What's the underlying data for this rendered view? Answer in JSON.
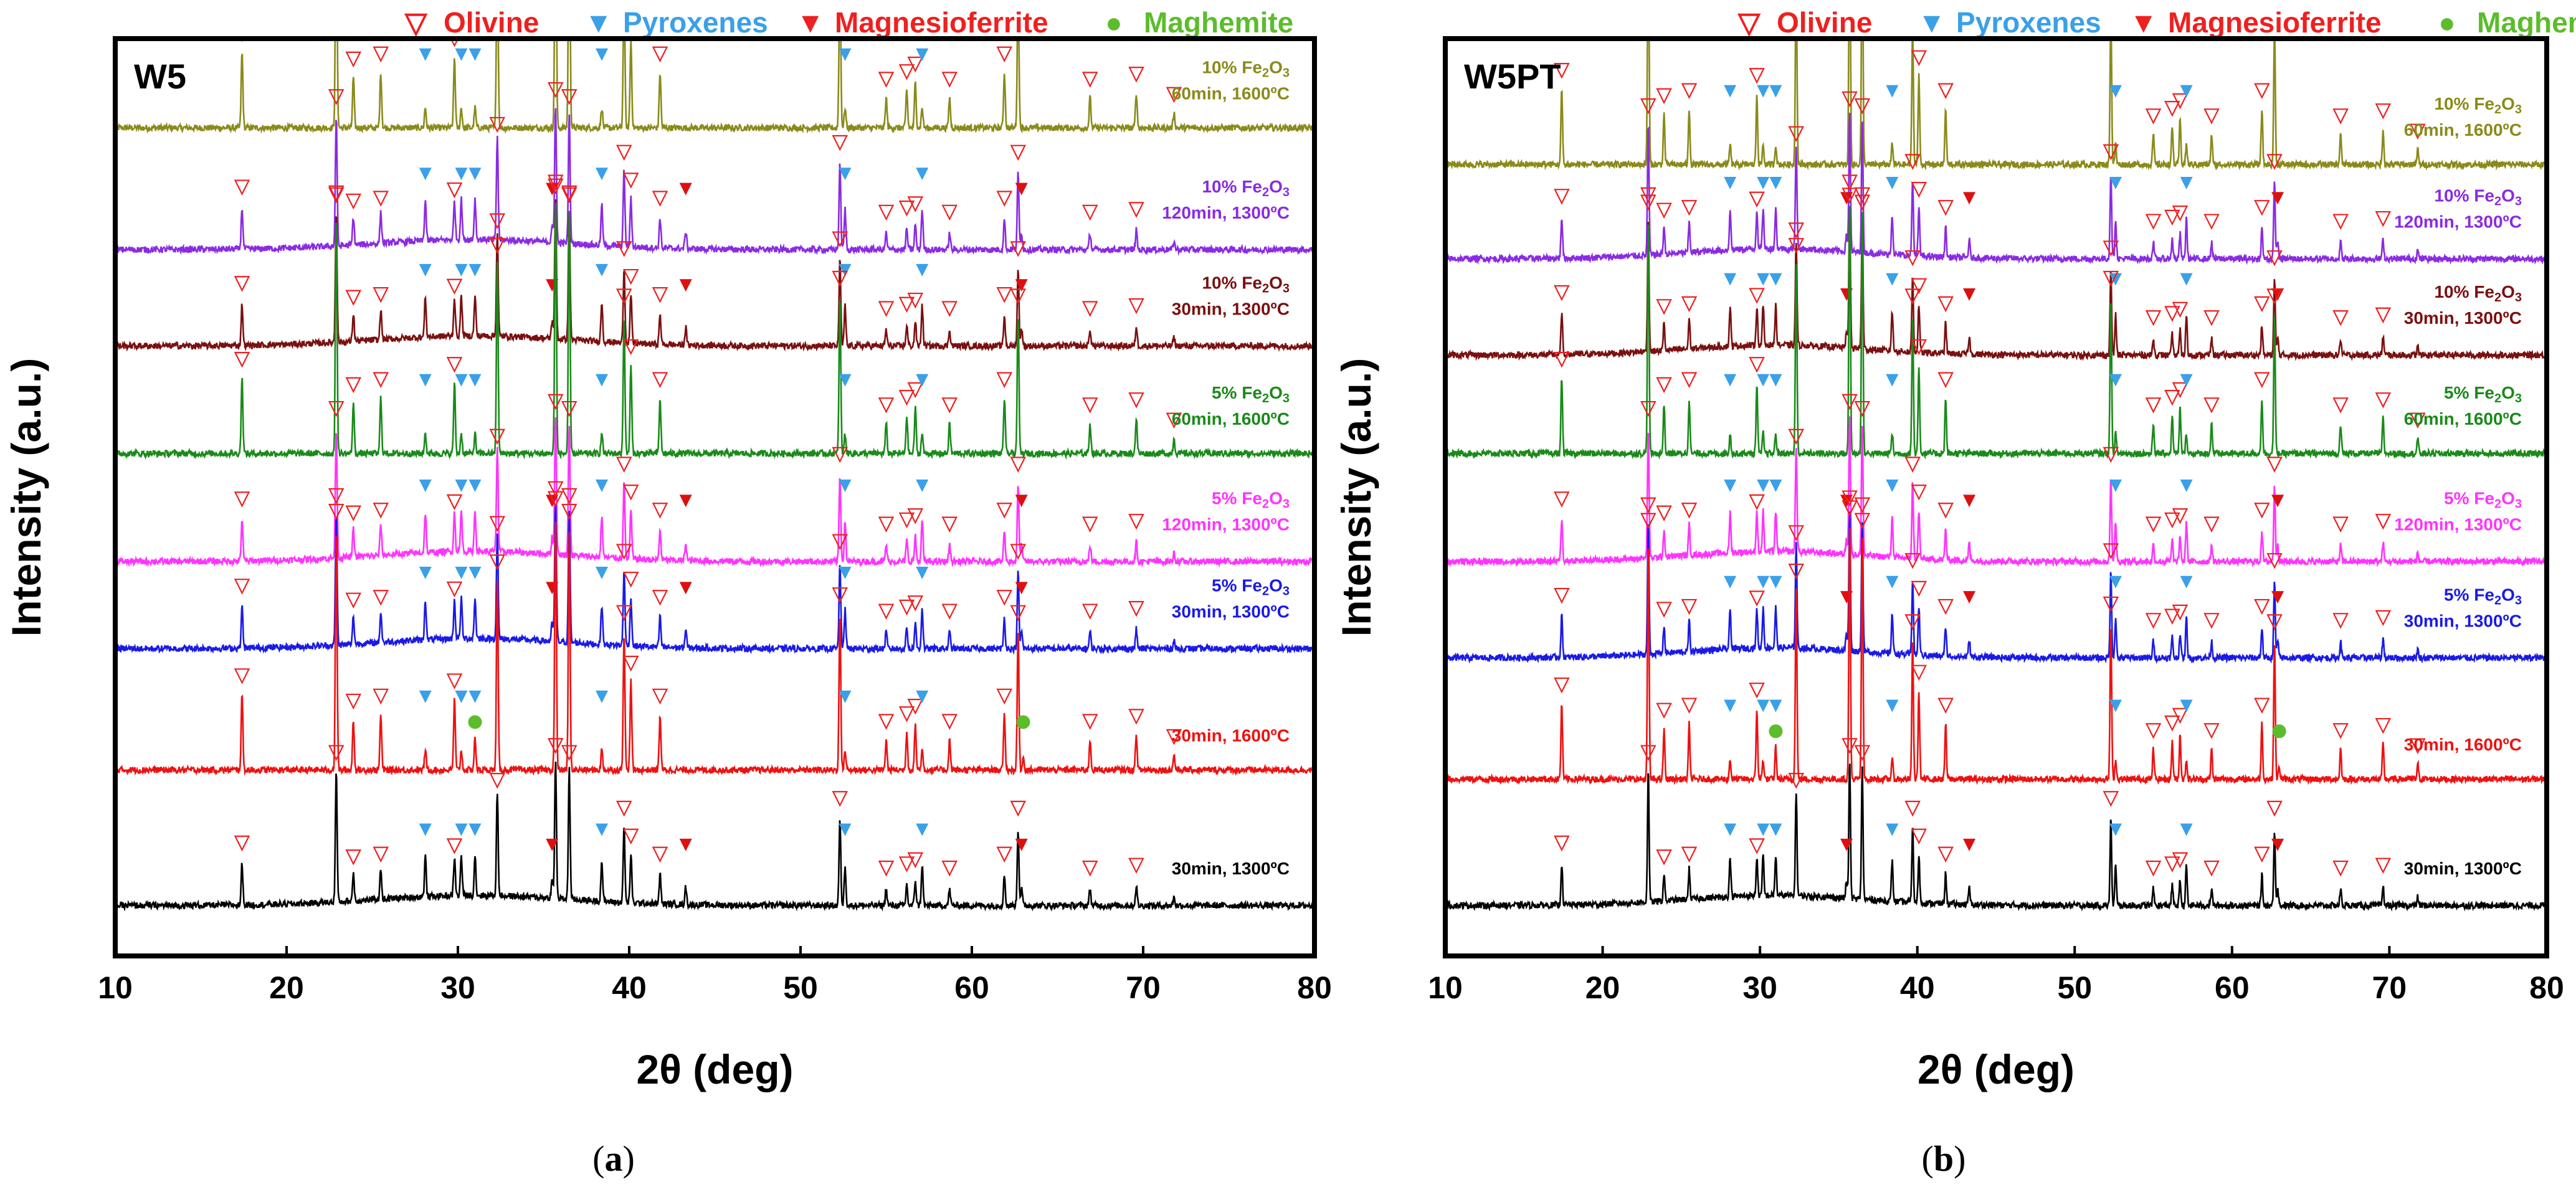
{
  "chart_data": [
    {
      "panel": "a",
      "type": "line",
      "title": "W5",
      "caption_letter": "a",
      "xlabel": "2θ  (deg)",
      "ylabel": "Intensity (a.u.)",
      "xlim": [
        10,
        80
      ],
      "xticks": [
        10,
        20,
        30,
        40,
        50,
        60,
        70,
        80
      ],
      "legend": [
        {
          "symbol": "▽",
          "label": "Olivine",
          "color": "#ee2020",
          "symbol_color": "#ee2020"
        },
        {
          "symbol": "▼",
          "label": "Pyroxenes",
          "color": "#3aa0e8",
          "symbol_color": "#3aa0e8"
        },
        {
          "symbol": "▼",
          "label": "Magnesioferrite",
          "color": "#ee2020",
          "symbol_color": "#ee2020"
        },
        {
          "symbol": "●",
          "label": "Maghemite",
          "color": "#5bbd2b",
          "symbol_color": "#5bbd2b"
        }
      ],
      "series": [
        {
          "name": "10% Fe2O3 60min, 1600ºC",
          "line1": "10% Fe",
          "line1_sub": "2",
          "line1_mid": "O",
          "line1_sub2": "3",
          "line2": "60min, 1600ºC",
          "color": "#8a8a1a",
          "baseline": 0.9,
          "kind": "1600",
          "pyro": 1,
          "maghemite": 0
        },
        {
          "name": "10% Fe2O3 120min, 1300ºC",
          "line1": "10% Fe",
          "line1_sub": "2",
          "line1_mid": "O",
          "line1_sub2": "3",
          "line2": "120min, 1300ºC",
          "color": "#8a2be2",
          "baseline": 0.77,
          "kind": "1300",
          "pyro": 1,
          "maghemite": 0
        },
        {
          "name": "10% Fe2O3 30min, 1300ºC",
          "line1": "10% Fe",
          "line1_sub": "2",
          "line1_mid": "O",
          "line1_sub2": "3",
          "line2": "30min, 1300ºC",
          "color": "#7a1010",
          "baseline": 0.665,
          "kind": "1300",
          "pyro": 1,
          "maghemite": 0
        },
        {
          "name": "5% Fe2O3 60min, 1600ºC",
          "line1": "5% Fe",
          "line1_sub": "2",
          "line1_mid": "O",
          "line1_sub2": "3",
          "line2": "60min, 1600ºC",
          "color": "#1a8a1a",
          "baseline": 0.545,
          "kind": "1600",
          "pyro": 1,
          "maghemite": 0
        },
        {
          "name": "5% Fe2O3 120min, 1300ºC",
          "line1": "5% Fe",
          "line1_sub": "2",
          "line1_mid": "O",
          "line1_sub2": "3",
          "line2": "120min, 1300ºC",
          "color": "#ff33ff",
          "baseline": 0.43,
          "kind": "1300",
          "pyro": 1,
          "maghemite": 0
        },
        {
          "name": "5% Fe2O3 30min, 1300ºC",
          "line1": "5% Fe",
          "line1_sub": "2",
          "line1_mid": "O",
          "line1_sub2": "3",
          "line2": "30min, 1300ºC",
          "color": "#1a1ae6",
          "baseline": 0.335,
          "kind": "1300",
          "pyro": 1,
          "maghemite": 0
        },
        {
          "name": "30min, 1600ºC",
          "line1": "",
          "line1_sub": "",
          "line1_mid": "",
          "line1_sub2": "",
          "line2": "30min, 1600ºC",
          "color": "#ee1111",
          "baseline": 0.2,
          "kind": "1600",
          "pyro": 1,
          "maghemite": 1
        },
        {
          "name": "30min, 1300ºC",
          "line1": "",
          "line1_sub": "",
          "line1_mid": "",
          "line1_sub2": "",
          "line2": "30min, 1300ºC",
          "color": "#000000",
          "baseline": 0.055,
          "kind": "1300",
          "pyro": 1,
          "maghemite": 0
        }
      ]
    },
    {
      "panel": "b",
      "type": "line",
      "title": "W5PT",
      "caption_letter": "b",
      "xlabel": "2θ  (deg)",
      "ylabel": "Intensity (a.u.)",
      "xlim": [
        10,
        80
      ],
      "xticks": [
        10,
        20,
        30,
        40,
        50,
        60,
        70,
        80
      ],
      "legend": [
        {
          "symbol": "▽",
          "label": "Olivine",
          "color": "#ee2020",
          "symbol_color": "#ee2020"
        },
        {
          "symbol": "▼",
          "label": "Pyroxenes",
          "color": "#3aa0e8",
          "symbol_color": "#3aa0e8"
        },
        {
          "symbol": "▼",
          "label": "Magnesioferrite",
          "color": "#ee2020",
          "symbol_color": "#ee2020"
        },
        {
          "symbol": "●",
          "label": "Maghemite",
          "color": "#5bbd2b",
          "symbol_color": "#5bbd2b"
        }
      ],
      "series": [
        {
          "name": "10% Fe2O3 60min, 1600ºC",
          "line1": "10% Fe",
          "line1_sub": "2",
          "line1_mid": "O",
          "line1_sub2": "3",
          "line2": "60min, 1600ºC",
          "color": "#8a8a1a",
          "baseline": 0.86,
          "kind": "1600",
          "pyro": 1,
          "maghemite": 0
        },
        {
          "name": "10% Fe2O3 120min, 1300ºC",
          "line1": "10% Fe",
          "line1_sub": "2",
          "line1_mid": "O",
          "line1_sub2": "3",
          "line2": "120min, 1300ºC",
          "color": "#8a2be2",
          "baseline": 0.76,
          "kind": "1300",
          "pyro": 1,
          "maghemite": 0
        },
        {
          "name": "10% Fe2O3 30min, 1300ºC",
          "line1": "10% Fe",
          "line1_sub": "2",
          "line1_mid": "O",
          "line1_sub2": "3",
          "line2": "30min, 1300ºC",
          "color": "#7a1010",
          "baseline": 0.655,
          "kind": "1300",
          "pyro": 1,
          "maghemite": 0
        },
        {
          "name": "5% Fe2O3 60min, 1600ºC",
          "line1": "5% Fe",
          "line1_sub": "2",
          "line1_mid": "O",
          "line1_sub2": "3",
          "line2": "60min, 1600ºC",
          "color": "#1a8a1a",
          "baseline": 0.545,
          "kind": "1600",
          "pyro": 1,
          "maghemite": 0
        },
        {
          "name": "5% Fe2O3 120min, 1300ºC",
          "line1": "5% Fe",
          "line1_sub": "2",
          "line1_mid": "O",
          "line1_sub2": "3",
          "line2": "120min, 1300ºC",
          "color": "#ff33ff",
          "baseline": 0.43,
          "kind": "1300",
          "pyro": 1,
          "maghemite": 0
        },
        {
          "name": "5% Fe2O3 30min, 1300ºC",
          "line1": "5% Fe",
          "line1_sub": "2",
          "line1_mid": "O",
          "line1_sub2": "3",
          "line2": "30min, 1300ºC",
          "color": "#1a1ae6",
          "baseline": 0.325,
          "kind": "1300",
          "pyro": 1,
          "maghemite": 0
        },
        {
          "name": "30min, 1600ºC",
          "line1": "",
          "line1_sub": "",
          "line1_mid": "",
          "line1_sub2": "",
          "line2": "30min, 1600ºC",
          "color": "#ee1111",
          "baseline": 0.19,
          "kind": "1600",
          "pyro": 1,
          "maghemite": 1
        },
        {
          "name": "30min, 1300ºC",
          "line1": "",
          "line1_sub": "",
          "line1_mid": "",
          "line1_sub2": "",
          "line2": "30min, 1300ºC",
          "color": "#000000",
          "baseline": 0.055,
          "kind": "1300",
          "pyro": 1,
          "maghemite": 0
        }
      ]
    }
  ],
  "peaks": {
    "olivine": [
      {
        "x": 17.4,
        "h": 0.3
      },
      {
        "x": 22.9,
        "h": 0.95
      },
      {
        "x": 23.9,
        "h": 0.2
      },
      {
        "x": 25.5,
        "h": 0.22
      },
      {
        "x": 29.8,
        "h": 0.28
      },
      {
        "x": 32.3,
        "h": 0.75
      },
      {
        "x": 35.7,
        "h": 1.0
      },
      {
        "x": 36.5,
        "h": 0.95
      },
      {
        "x": 39.7,
        "h": 0.55
      },
      {
        "x": 40.1,
        "h": 0.35
      },
      {
        "x": 41.8,
        "h": 0.22
      },
      {
        "x": 52.3,
        "h": 0.62
      },
      {
        "x": 55.0,
        "h": 0.12
      },
      {
        "x": 56.2,
        "h": 0.15
      },
      {
        "x": 56.7,
        "h": 0.18
      },
      {
        "x": 58.7,
        "h": 0.12
      },
      {
        "x": 61.9,
        "h": 0.22
      },
      {
        "x": 62.7,
        "h": 0.55
      },
      {
        "x": 66.9,
        "h": 0.12
      },
      {
        "x": 69.6,
        "h": 0.14
      },
      {
        "x": 71.8,
        "h": 0.06
      }
    ],
    "pyroxene": [
      28.1,
      30.2,
      31.0,
      38.4,
      52.6,
      57.1
    ],
    "magnesioferrite": [
      35.5,
      43.3,
      62.9
    ],
    "maghemite": [
      31.0,
      63.0
    ]
  }
}
